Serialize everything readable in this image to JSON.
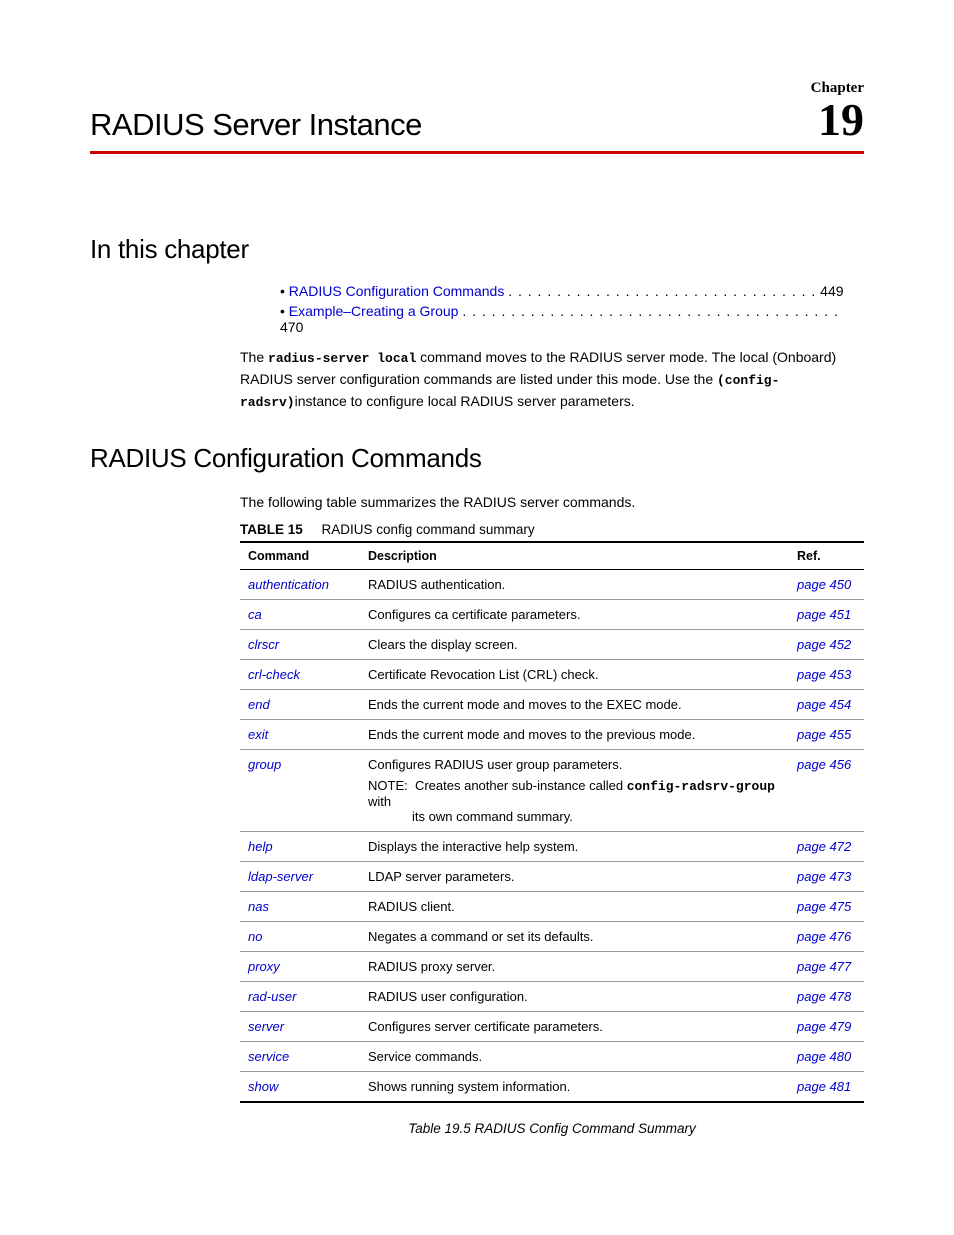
{
  "chapter": {
    "label": "Chapter",
    "number": "19"
  },
  "page_title": "RADIUS Server Instance",
  "sections": {
    "in_this_chapter": "In this chapter",
    "radius_config": "RADIUS Configuration Commands"
  },
  "toc": {
    "items": [
      {
        "label": "RADIUS Configuration Commands",
        "page": "449",
        "dots": ". . . . . . . . . . . . . . . . . . . . . . . . . . . . . . . ."
      },
      {
        "label": "Example–Creating a Group",
        "page": "470",
        "dots": ". . . . . . . . . . . . . . . . . . . . . . . . . . . . . . . . . . . . . . ."
      }
    ]
  },
  "intro": {
    "prefix": "The ",
    "cmd1": "radius-server local",
    "middle": " command moves to the RADIUS server mode. The local (Onboard) RADIUS server  configuration commands are listed under this mode. Use the ",
    "cmd2": "(config-radsrv)",
    "suffix": "instance to configure local RADIUS server parameters."
  },
  "table_intro": "The following table summarizes the RADIUS server commands.",
  "table_label": {
    "bold": "TABLE 15",
    "text": "RADIUS config command summary"
  },
  "table_headers": {
    "command": "Command",
    "description": "Description",
    "ref": "Ref."
  },
  "rows": [
    {
      "cmd": "authentication",
      "desc": "RADIUS authentication.",
      "ref": "page 450"
    },
    {
      "cmd": "ca",
      "desc": "Configures ca certificate parameters.",
      "ref": "page 451"
    },
    {
      "cmd": "clrscr",
      "desc": "Clears the display screen.",
      "ref": "page 452"
    },
    {
      "cmd": "crl-check",
      "desc": "Certificate Revocation List (CRL) check.",
      "ref": "page 453"
    },
    {
      "cmd": "end",
      "desc": "Ends the current mode and moves to the EXEC mode.",
      "ref": "page 454"
    },
    {
      "cmd": "exit",
      "desc": "Ends the current mode and moves to the previous mode.",
      "ref": "page 455"
    },
    {
      "cmd": "group",
      "desc": "Configures RADIUS user group parameters.",
      "note_label": "NOTE:",
      "note_pre": "Creates another sub-instance called ",
      "note_mono": "config-radsrv-group",
      "note_post": " with its own command summary.",
      "ref": "page 456"
    },
    {
      "cmd": "help",
      "desc": "Displays the interactive help system.",
      "ref": "page 472"
    },
    {
      "cmd": "ldap-server",
      "desc": "LDAP server parameters.",
      "ref": "page 473"
    },
    {
      "cmd": "nas",
      "desc": "RADIUS client.",
      "ref": "page 475"
    },
    {
      "cmd": "no",
      "desc": "Negates a command or set its defaults.",
      "ref": "page 476"
    },
    {
      "cmd": "proxy",
      "desc": "RADIUS proxy server.",
      "ref": "page 477"
    },
    {
      "cmd": "rad-user",
      "desc": "RADIUS user configuration.",
      "ref": "page 478"
    },
    {
      "cmd": "server",
      "desc": "Configures server certificate parameters.",
      "ref": "page 479"
    },
    {
      "cmd": "service",
      "desc": "Service commands.",
      "ref": "page 480"
    },
    {
      "cmd": "show",
      "desc": "Shows running system information.",
      "ref": "page 481"
    }
  ],
  "table_caption": "Table 19.5  RADIUS Config Command Summary",
  "colors": {
    "link": "#0000cc",
    "rule": "#cc0000"
  }
}
